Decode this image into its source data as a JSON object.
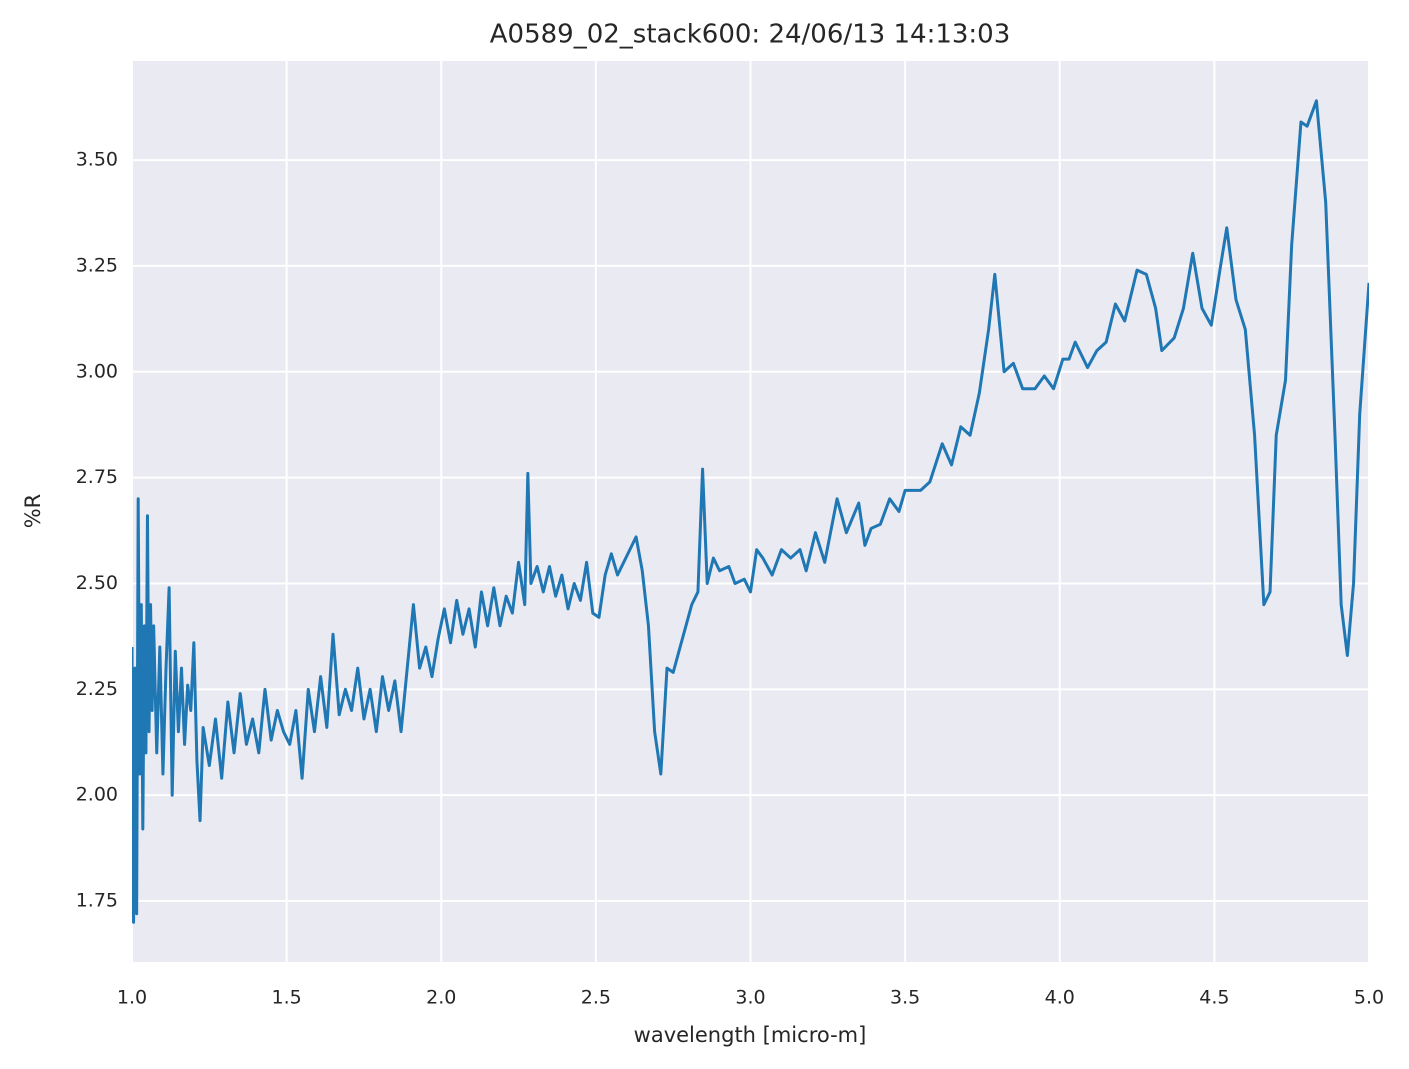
{
  "chart_data": {
    "type": "line",
    "title": "A0589_02_stack600:  24/06/13 14:13:03",
    "xlabel": "wavelength [micro-m]",
    "ylabel": "%R",
    "grid": true,
    "xlim": [
      1.0,
      5.0
    ],
    "ylim": [
      1.606,
      3.734
    ],
    "xticks": [
      {
        "value": 1.0,
        "label": "1.0"
      },
      1.5,
      {
        "value": 2.0,
        "label": "2.0"
      },
      2.5,
      {
        "value": 3.0,
        "label": "3.0"
      },
      3.5,
      {
        "value": 4.0,
        "label": "4.0"
      },
      4.5,
      {
        "value": 5.0,
        "label": "5.0"
      }
    ],
    "yticks": [
      1.75,
      {
        "value": 2.0,
        "label": "2.00"
      },
      2.25,
      {
        "value": 2.5,
        "label": "2.50"
      },
      2.75,
      {
        "value": 3.0,
        "label": "3.00"
      },
      3.25,
      {
        "value": 3.5,
        "label": "3.50"
      }
    ],
    "x": [
      1.0,
      1.005,
      1.01,
      1.015,
      1.02,
      1.025,
      1.03,
      1.035,
      1.04,
      1.045,
      1.05,
      1.055,
      1.06,
      1.065,
      1.07,
      1.08,
      1.09,
      1.1,
      1.11,
      1.12,
      1.13,
      1.14,
      1.15,
      1.16,
      1.17,
      1.18,
      1.19,
      1.2,
      1.21,
      1.22,
      1.23,
      1.25,
      1.27,
      1.29,
      1.31,
      1.33,
      1.35,
      1.37,
      1.39,
      1.41,
      1.43,
      1.45,
      1.47,
      1.49,
      1.51,
      1.53,
      1.55,
      1.57,
      1.59,
      1.61,
      1.63,
      1.65,
      1.67,
      1.69,
      1.71,
      1.73,
      1.75,
      1.77,
      1.79,
      1.81,
      1.83,
      1.85,
      1.87,
      1.89,
      1.91,
      1.93,
      1.95,
      1.97,
      1.99,
      2.01,
      2.03,
      2.05,
      2.07,
      2.09,
      2.11,
      2.13,
      2.15,
      2.17,
      2.19,
      2.21,
      2.23,
      2.25,
      2.27,
      2.28,
      2.29,
      2.31,
      2.33,
      2.35,
      2.37,
      2.39,
      2.41,
      2.43,
      2.45,
      2.47,
      2.49,
      2.51,
      2.53,
      2.55,
      2.57,
      2.59,
      2.61,
      2.63,
      2.65,
      2.67,
      2.69,
      2.71,
      2.73,
      2.75,
      2.78,
      2.81,
      2.83,
      2.845,
      2.86,
      2.88,
      2.9,
      2.93,
      2.95,
      2.98,
      3.0,
      3.02,
      3.04,
      3.07,
      3.1,
      3.13,
      3.16,
      3.18,
      3.21,
      3.24,
      3.28,
      3.31,
      3.35,
      3.37,
      3.39,
      3.42,
      3.45,
      3.48,
      3.5,
      3.55,
      3.58,
      3.62,
      3.65,
      3.68,
      3.71,
      3.74,
      3.77,
      3.79,
      3.82,
      3.85,
      3.88,
      3.92,
      3.95,
      3.98,
      4.01,
      4.03,
      4.05,
      4.09,
      4.12,
      4.15,
      4.18,
      4.21,
      4.25,
      4.28,
      4.31,
      4.33,
      4.37,
      4.4,
      4.43,
      4.46,
      4.49,
      4.52,
      4.54,
      4.57,
      4.6,
      4.63,
      4.66,
      4.68,
      4.7,
      4.73,
      4.75,
      4.78,
      4.8,
      4.83,
      4.86,
      4.89,
      4.91,
      4.93,
      4.95,
      4.97,
      5.0
    ],
    "series": [
      {
        "color": "#1f77b4",
        "values": [
          2.35,
          1.7,
          2.3,
          1.72,
          2.7,
          2.05,
          2.45,
          1.92,
          2.4,
          2.1,
          2.66,
          2.15,
          2.45,
          2.2,
          2.4,
          2.1,
          2.35,
          2.05,
          2.3,
          2.49,
          2.0,
          2.34,
          2.15,
          2.3,
          2.12,
          2.26,
          2.2,
          2.36,
          2.08,
          1.94,
          2.16,
          2.07,
          2.18,
          2.04,
          2.22,
          2.1,
          2.24,
          2.12,
          2.18,
          2.1,
          2.25,
          2.13,
          2.2,
          2.15,
          2.12,
          2.2,
          2.04,
          2.25,
          2.15,
          2.28,
          2.16,
          2.38,
          2.19,
          2.25,
          2.2,
          2.3,
          2.18,
          2.25,
          2.15,
          2.28,
          2.2,
          2.27,
          2.15,
          2.3,
          2.45,
          2.3,
          2.35,
          2.28,
          2.37,
          2.44,
          2.36,
          2.46,
          2.38,
          2.44,
          2.35,
          2.48,
          2.4,
          2.49,
          2.4,
          2.47,
          2.43,
          2.55,
          2.45,
          2.76,
          2.5,
          2.54,
          2.48,
          2.54,
          2.47,
          2.52,
          2.44,
          2.5,
          2.46,
          2.55,
          2.43,
          2.42,
          2.52,
          2.57,
          2.52,
          2.55,
          2.58,
          2.61,
          2.53,
          2.4,
          2.15,
          2.05,
          2.3,
          2.29,
          2.37,
          2.45,
          2.48,
          2.77,
          2.5,
          2.56,
          2.53,
          2.54,
          2.5,
          2.51,
          2.48,
          2.58,
          2.56,
          2.52,
          2.58,
          2.56,
          2.58,
          2.53,
          2.62,
          2.55,
          2.7,
          2.62,
          2.69,
          2.59,
          2.63,
          2.64,
          2.7,
          2.67,
          2.72,
          2.72,
          2.74,
          2.83,
          2.78,
          2.87,
          2.85,
          2.95,
          3.1,
          3.23,
          3.0,
          3.02,
          2.96,
          2.96,
          2.99,
          2.96,
          3.03,
          3.03,
          3.07,
          3.01,
          3.05,
          3.07,
          3.16,
          3.12,
          3.24,
          3.23,
          3.15,
          3.05,
          3.08,
          3.15,
          3.28,
          3.15,
          3.11,
          3.25,
          3.34,
          3.17,
          3.1,
          2.85,
          2.45,
          2.48,
          2.85,
          2.98,
          3.3,
          3.59,
          3.58,
          3.64,
          3.4,
          2.85,
          2.45,
          2.33,
          2.5,
          2.9,
          3.21
        ]
      }
    ]
  }
}
